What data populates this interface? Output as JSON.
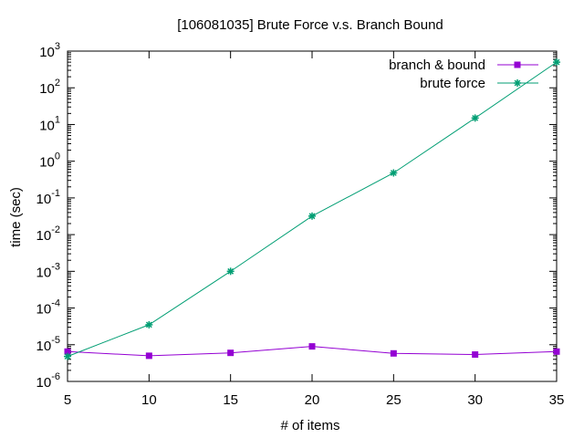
{
  "chart_data": {
    "type": "line",
    "title": "[106081035] Brute Force v.s. Branch   Bound",
    "xlabel": "# of items",
    "ylabel": "time (sec)",
    "x": [
      5,
      10,
      15,
      20,
      25,
      30,
      35
    ],
    "xlim": [
      5,
      35
    ],
    "xticks": [
      "5",
      "10",
      "15",
      "20",
      "25",
      "30",
      "35"
    ],
    "yscale": "log",
    "ylim": [
      1e-06,
      1000
    ],
    "ytick_exponents": [
      "-6",
      "-5",
      "-4",
      "-3",
      "-2",
      "-1",
      "0",
      "1",
      "2",
      "3"
    ],
    "ytick_base": "10",
    "grid": false,
    "legend": "top-right",
    "series": [
      {
        "name": "branch & bound",
        "color": "#9400d3",
        "marker": "square",
        "values": [
          6.5e-06,
          5e-06,
          6e-06,
          9e-06,
          5.8e-06,
          5.4e-06,
          6.5e-06
        ]
      },
      {
        "name": "brute force",
        "color": "#009e73",
        "marker": "star",
        "values": [
          4.8e-06,
          3.5e-05,
          0.001,
          0.032,
          0.48,
          15,
          500
        ]
      }
    ]
  }
}
